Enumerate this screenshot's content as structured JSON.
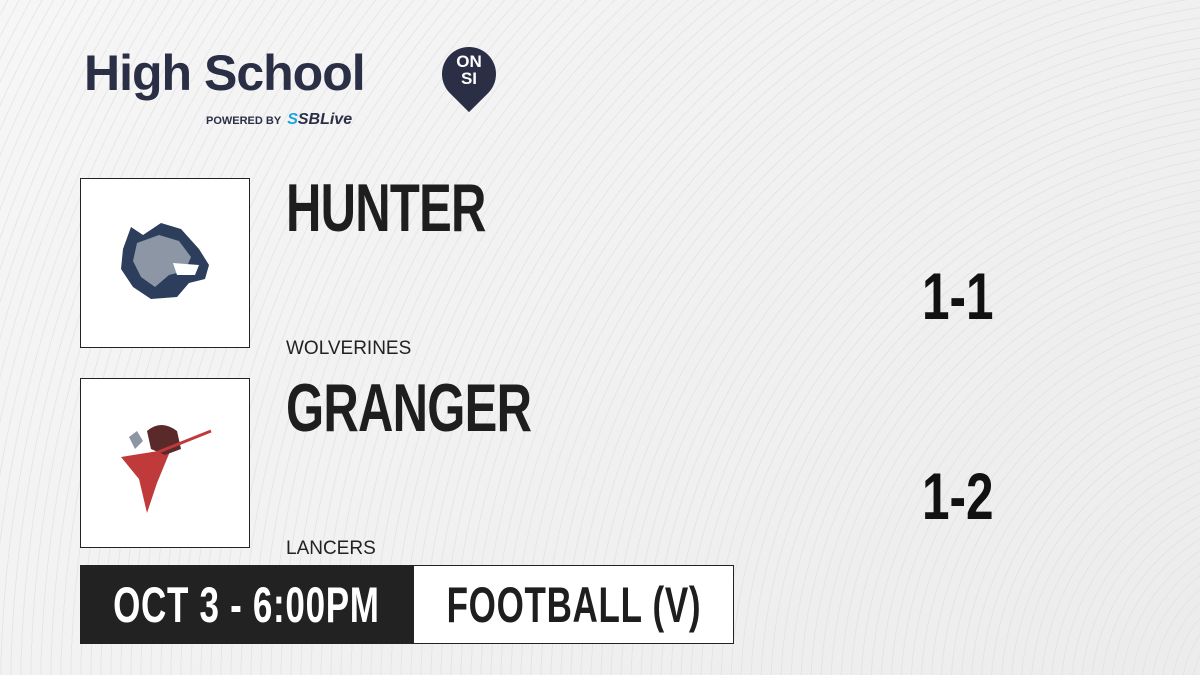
{
  "brand": {
    "title": "High School",
    "badge_top": "ON",
    "badge_bottom": "SI",
    "powered_by": "POWERED BY",
    "partner_prefix": "S",
    "partner": "SBLive",
    "accent": "#1fa3e0",
    "navy": "#2b2f45"
  },
  "teams": [
    {
      "name": "HUNTER",
      "mascot": "WOLVERINES",
      "record": "1-1",
      "logo_icon": "wolverine-logo"
    },
    {
      "name": "GRANGER",
      "mascot": "LANCERS",
      "record": "1-2",
      "logo_icon": "lancer-logo"
    }
  ],
  "game": {
    "datetime": "OCT 3 - 6:00PM",
    "sport": "FOOTBALL (V)"
  }
}
